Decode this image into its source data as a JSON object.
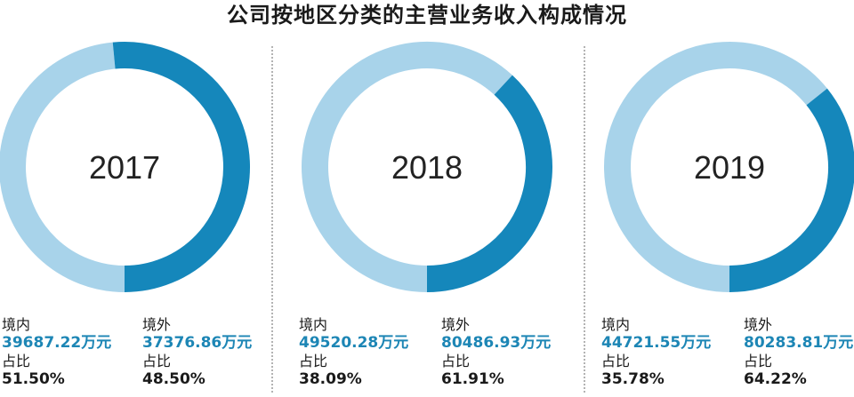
{
  "chart_data": {
    "type": "pie",
    "title": "公司按地区分类的主营业务收入构成情况",
    "series_colors": {
      "domestic": "#1587bb",
      "overseas": "#a8d3ea"
    },
    "charts": [
      {
        "year": "2017",
        "domestic": {
          "label": "境内",
          "amount": "39687.22万元",
          "share_label": "占比",
          "share": "51.50%",
          "value": 51.5
        },
        "overseas": {
          "label": "境外",
          "amount": "37376.86万元",
          "share_label": "占比",
          "share": "48.50%",
          "value": 48.5
        }
      },
      {
        "year": "2018",
        "domestic": {
          "label": "境内",
          "amount": "49520.28万元",
          "share_label": "占比",
          "share": "38.09%",
          "value": 38.09
        },
        "overseas": {
          "label": "境外",
          "amount": "80486.93万元",
          "share_label": "占比",
          "share": "61.91%",
          "value": 61.91
        }
      },
      {
        "year": "2019",
        "domestic": {
          "label": "境内",
          "amount": "44721.55万元",
          "share_label": "占比",
          "share": "35.78%",
          "value": 35.78
        },
        "overseas": {
          "label": "境外",
          "amount": "80283.81万元",
          "share_label": "占比",
          "share": "64.22%",
          "value": 64.22
        }
      }
    ]
  }
}
